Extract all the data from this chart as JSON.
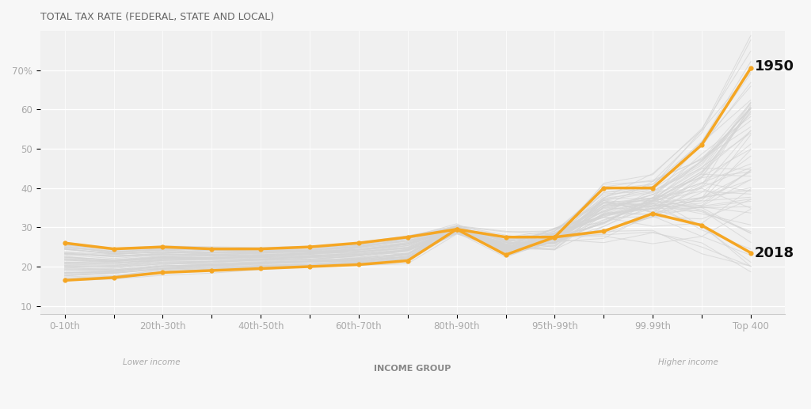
{
  "title": "TOTAL TAX RATE (FEDERAL, STATE AND LOCAL)",
  "xlabel": "INCOME GROUP",
  "xlabel_lower": "Lower income",
  "xlabel_higher": "Higher income",
  "background_color": "#f7f7f7",
  "plot_bg_color": "#f0f0f0",
  "x_labels_display": [
    "0-10th",
    "",
    "20th-30th",
    "",
    "40th-50th",
    "",
    "60th-70th",
    "",
    "80th-90th",
    "",
    "95th-99th",
    "",
    "99.99th",
    "",
    "Top 400"
  ],
  "yticks": [
    10,
    20,
    30,
    40,
    50,
    60,
    70
  ],
  "ylim": [
    8,
    80
  ],
  "gold_color": "#f5a623",
  "gray_line_color": "#d4d4d4",
  "line_1950": [
    16.5,
    17.2,
    18.5,
    19.0,
    19.5,
    20.0,
    20.5,
    21.5,
    29.5,
    27.5,
    27.5,
    40.0,
    40.0,
    51.0,
    70.5
  ],
  "line_2018": [
    26.0,
    24.5,
    25.0,
    24.5,
    24.5,
    25.0,
    26.0,
    27.5,
    29.5,
    23.0,
    27.5,
    29.0,
    33.5,
    30.5,
    23.5
  ],
  "title_fontsize": 9,
  "axis_label_fontsize": 8,
  "tick_fontsize": 8.5,
  "annotation_fontsize": 13
}
